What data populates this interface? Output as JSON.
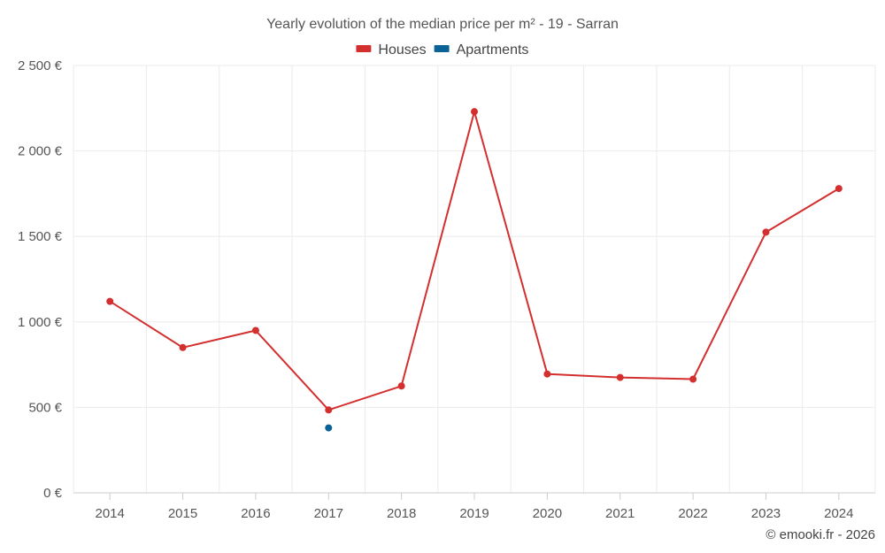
{
  "chart_data": {
    "type": "line",
    "title": "Yearly evolution of the median price per m² - 19 - Sarran",
    "x": [
      "2014",
      "2015",
      "2016",
      "2017",
      "2018",
      "2019",
      "2020",
      "2021",
      "2022",
      "2023",
      "2024"
    ],
    "ylim": [
      0,
      2500
    ],
    "yticks": [
      {
        "value": 0,
        "label": "0 €"
      },
      {
        "value": 500,
        "label": "500 €"
      },
      {
        "value": 1000,
        "label": "1 000 €"
      },
      {
        "value": 1500,
        "label": "1 500 €"
      },
      {
        "value": 2000,
        "label": "2 000 €"
      },
      {
        "value": 2500,
        "label": "2 500 €"
      }
    ],
    "grid": true,
    "legend_position": "top-center",
    "series": [
      {
        "name": "Houses",
        "color": "#d32f2f",
        "values": [
          1120,
          850,
          950,
          485,
          625,
          2230,
          695,
          675,
          665,
          1525,
          1780
        ]
      },
      {
        "name": "Apartments",
        "color": "#0a6296",
        "values": [
          null,
          null,
          null,
          380,
          null,
          null,
          null,
          null,
          null,
          null,
          null
        ]
      }
    ]
  },
  "credit": "© emooki.fr - 2026"
}
